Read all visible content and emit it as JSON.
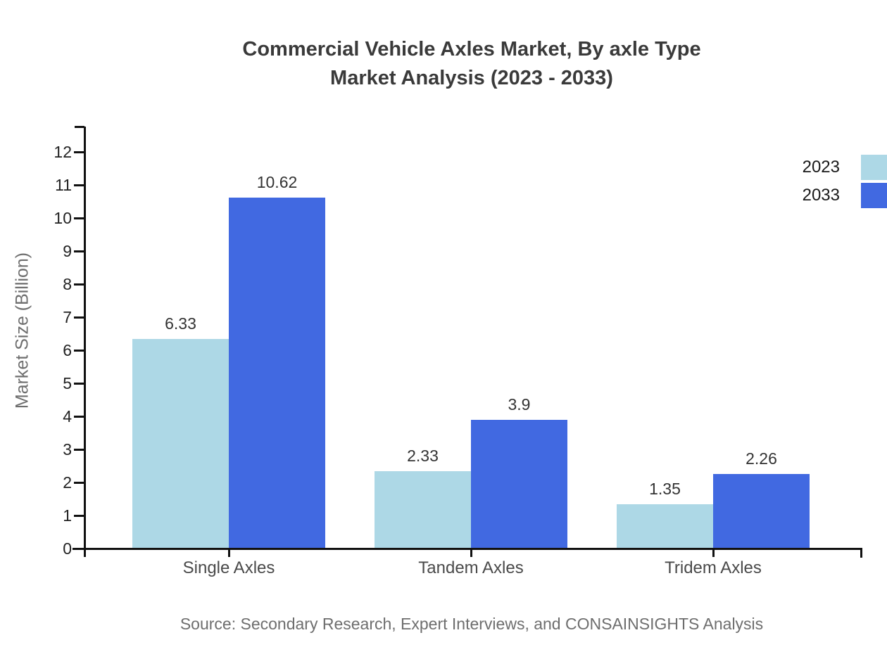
{
  "title": {
    "line1": "Commercial Vehicle Axles Market, By axle Type",
    "line2": "Market Analysis (2023 - 2033)"
  },
  "source": "Source: Secondary Research, Expert Interviews, and CONSAINSIGHTS Analysis",
  "chart_data": {
    "type": "bar",
    "title": "Commercial Vehicle Axles Market, By axle Type Market Analysis (2023 - 2033)",
    "categories": [
      "Single Axles",
      "Tandem Axles",
      "Tridem Axles"
    ],
    "series": [
      {
        "name": "2023",
        "color": "#add8e6",
        "values": [
          6.33,
          2.33,
          1.35
        ]
      },
      {
        "name": "2033",
        "color": "#4169e1",
        "values": [
          10.62,
          3.9,
          2.26
        ]
      }
    ],
    "xlabel": "",
    "ylabel": "Market Size (Billion)",
    "ylim": [
      0,
      12.8
    ],
    "yticks": [
      0,
      1,
      2,
      3,
      4,
      5,
      6,
      7,
      8,
      9,
      10,
      11,
      12
    ],
    "grid": false,
    "value_labels": true,
    "legend_position": "top-right",
    "axis_color": "#111111"
  }
}
